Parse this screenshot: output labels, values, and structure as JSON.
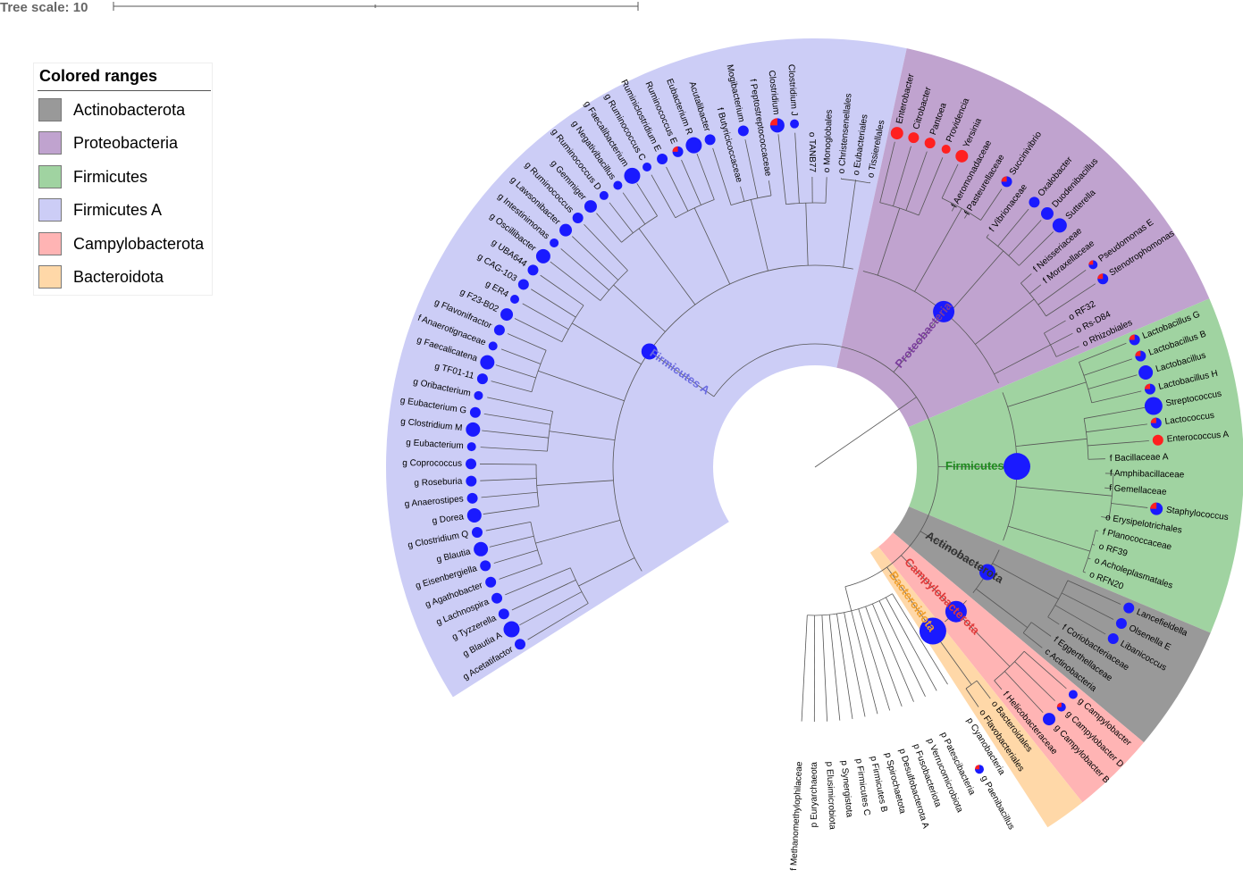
{
  "scale": {
    "title": "Tree scale: 10"
  },
  "legend": {
    "title": "Colored ranges",
    "items": [
      {
        "label": "Actinobacterota",
        "color": "#999999"
      },
      {
        "label": "Proteobacteria",
        "color": "#c0a3cf"
      },
      {
        "label": "Firmicutes",
        "color": "#a0d3a1"
      },
      {
        "label": "Firmicutes A",
        "color": "#cccdf6"
      },
      {
        "label": "Campylobacterota",
        "color": "#ffb4b4"
      },
      {
        "label": "Bacteroidota",
        "color": "#ffd8a8"
      }
    ]
  },
  "phylum_labels": [
    {
      "text": "Actinobacterota",
      "color": "#333333"
    },
    {
      "text": "Campylobacterota",
      "color": "#e03b3b"
    },
    {
      "text": "Bacteroidota",
      "color": "#f0a030"
    },
    {
      "text": "Firmicutes",
      "color": "#1f8a1f"
    },
    {
      "text": "Proteobacteria",
      "color": "#7a3d9c"
    },
    {
      "text": "Firmicutes A",
      "color": "#6a6ae0"
    }
  ],
  "leaves": [
    {
      "label": "g Acetatifactor",
      "clade": "Firmicutes A",
      "marker": "blue",
      "size": 6
    },
    {
      "label": "g Blautia A",
      "clade": "Firmicutes A",
      "marker": "blue",
      "size": 9
    },
    {
      "label": "g Tyzzerella",
      "clade": "Firmicutes A",
      "marker": "blue",
      "size": 6
    },
    {
      "label": "g Lachnospira",
      "clade": "Firmicutes A",
      "marker": "blue",
      "size": 6
    },
    {
      "label": "g Agathobacter",
      "clade": "Firmicutes A",
      "marker": "blue",
      "size": 6
    },
    {
      "label": "g Eisenbergiella",
      "clade": "Firmicutes A",
      "marker": "blue",
      "size": 6
    },
    {
      "label": "g Blautia",
      "clade": "Firmicutes A",
      "marker": "blue",
      "size": 8
    },
    {
      "label": "g Clostridium Q",
      "clade": "Firmicutes A",
      "marker": "blue",
      "size": 6
    },
    {
      "label": "g Dorea",
      "clade": "Firmicutes A",
      "marker": "blue",
      "size": 8
    },
    {
      "label": "g Anaerostipes",
      "clade": "Firmicutes A",
      "marker": "blue",
      "size": 6
    },
    {
      "label": "g Roseburia",
      "clade": "Firmicutes A",
      "marker": "blue",
      "size": 6
    },
    {
      "label": "g Coprococcus",
      "clade": "Firmicutes A",
      "marker": "blue",
      "size": 6
    },
    {
      "label": "g Eubacterium",
      "clade": "Firmicutes A",
      "marker": "blue",
      "size": 5
    },
    {
      "label": "g Clostridium M",
      "clade": "Firmicutes A",
      "marker": "blue",
      "size": 8
    },
    {
      "label": "g Eubacterium G",
      "clade": "Firmicutes A",
      "marker": "blue",
      "size": 6
    },
    {
      "label": "g Oribacterium",
      "clade": "Firmicutes A",
      "marker": "blue",
      "size": 5
    },
    {
      "label": "g TF01-11",
      "clade": "Firmicutes A",
      "marker": "blue",
      "size": 6
    },
    {
      "label": "g Faecalicatena",
      "clade": "Firmicutes A",
      "marker": "blue",
      "size": 8
    },
    {
      "label": "f Anaerotignaceae",
      "clade": "Firmicutes A",
      "marker": "blue",
      "size": 5
    },
    {
      "label": "g Flavonifractor",
      "clade": "Firmicutes A",
      "marker": "blue",
      "size": 6
    },
    {
      "label": "g F23-B02",
      "clade": "Firmicutes A",
      "marker": "blue",
      "size": 7
    },
    {
      "label": "g ER4",
      "clade": "Firmicutes A",
      "marker": "blue",
      "size": 5
    },
    {
      "label": "g CAG-103",
      "clade": "Firmicutes A",
      "marker": "blue",
      "size": 6
    },
    {
      "label": "g UBA644",
      "clade": "Firmicutes A",
      "marker": "blue",
      "size": 6
    },
    {
      "label": "g Oscillibacter",
      "clade": "Firmicutes A",
      "marker": "blue",
      "size": 8
    },
    {
      "label": "g Intestinimonas",
      "clade": "Firmicutes A",
      "marker": "blue",
      "size": 5
    },
    {
      "label": "g Lawsonibacter",
      "clade": "Firmicutes A",
      "marker": "blue",
      "size": 7
    },
    {
      "label": "g Ruminococcus",
      "clade": "Firmicutes A",
      "marker": "blue",
      "size": 6
    },
    {
      "label": "g Gemmiger",
      "clade": "Firmicutes A",
      "marker": "blue",
      "size": 7
    },
    {
      "label": "g Ruminococcus D",
      "clade": "Firmicutes A",
      "marker": "blue",
      "size": 5
    },
    {
      "label": "g Negativibacillus",
      "clade": "Firmicutes A",
      "marker": "blue",
      "size": 5
    },
    {
      "label": "g Faecalibacterium",
      "clade": "Firmicutes A",
      "marker": "blue",
      "size": 9
    },
    {
      "label": "g Ruminococcus C",
      "clade": "Firmicutes A",
      "marker": "blue",
      "size": 5
    },
    {
      "label": "Ruminiclostridium E",
      "clade": "Firmicutes A",
      "marker": "blue",
      "size": 6
    },
    {
      "label": "Ruminococcus E",
      "clade": "Firmicutes A",
      "marker": "mixed",
      "size": 6
    },
    {
      "label": "Eubacterium R",
      "clade": "Firmicutes A",
      "marker": "blue",
      "size": 9
    },
    {
      "label": "Acutalibacter",
      "clade": "Firmicutes A",
      "marker": "blue",
      "size": 6
    },
    {
      "label": "f Butyricicoccaceae",
      "clade": "Firmicutes A",
      "marker": "none",
      "size": 0
    },
    {
      "label": "Mogibacterium",
      "clade": "Firmicutes A",
      "marker": "blue",
      "size": 6
    },
    {
      "label": "f Peptostreptococcaceae",
      "clade": "Firmicutes A",
      "marker": "none",
      "size": 0
    },
    {
      "label": "Clostridium",
      "clade": "Firmicutes A",
      "marker": "mixed",
      "size": 8
    },
    {
      "label": "Clostridium J",
      "clade": "Firmicutes A",
      "marker": "blue",
      "size": 5
    },
    {
      "label": "o TANB77",
      "clade": "Firmicutes A",
      "marker": "none",
      "size": 0
    },
    {
      "label": "o Monoglobales",
      "clade": "Firmicutes A",
      "marker": "none",
      "size": 0
    },
    {
      "label": "o Christensenellales",
      "clade": "Firmicutes A",
      "marker": "none",
      "size": 0
    },
    {
      "label": "o Eubacteriales",
      "clade": "Firmicutes A",
      "marker": "none",
      "size": 0
    },
    {
      "label": "o Tissierellales",
      "clade": "Firmicutes A",
      "marker": "none",
      "size": 0
    },
    {
      "label": "Enterobacter",
      "clade": "Proteobacteria",
      "marker": "red",
      "size": 7
    },
    {
      "label": "Citrobacter",
      "clade": "Proteobacteria",
      "marker": "red",
      "size": 6
    },
    {
      "label": "Pantoea",
      "clade": "Proteobacteria",
      "marker": "red",
      "size": 6
    },
    {
      "label": "Providencia",
      "clade": "Proteobacteria",
      "marker": "red",
      "size": 5
    },
    {
      "label": "Yersinia",
      "clade": "Proteobacteria",
      "marker": "red",
      "size": 7
    },
    {
      "label": "f Aeromonadaceae",
      "clade": "Proteobacteria",
      "marker": "none",
      "size": 0
    },
    {
      "label": "f Pasteurellaceae",
      "clade": "Proteobacteria",
      "marker": "none",
      "size": 0
    },
    {
      "label": "Succinivibrio",
      "clade": "Proteobacteria",
      "marker": "mixed",
      "size": 6
    },
    {
      "label": "f Vibrionaceae",
      "clade": "Proteobacteria",
      "marker": "none",
      "size": 0
    },
    {
      "label": "Oxalobacter",
      "clade": "Proteobacteria",
      "marker": "blue",
      "size": 6
    },
    {
      "label": "Duodenibacillus",
      "clade": "Proteobacteria",
      "marker": "blue",
      "size": 7
    },
    {
      "label": "Sutterella",
      "clade": "Proteobacteria",
      "marker": "blue",
      "size": 8
    },
    {
      "label": "f Neisseriaceae",
      "clade": "Proteobacteria",
      "marker": "none",
      "size": 0
    },
    {
      "label": "f Moraxellaceae",
      "clade": "Proteobacteria",
      "marker": "none",
      "size": 0
    },
    {
      "label": "Pseudomonas E",
      "clade": "Proteobacteria",
      "marker": "mixed",
      "size": 5
    },
    {
      "label": "Stenotrophomonas",
      "clade": "Proteobacteria",
      "marker": "mixed",
      "size": 6
    },
    {
      "label": "o RF32",
      "clade": "Proteobacteria",
      "marker": "none",
      "size": 0
    },
    {
      "label": "o Rs-D84",
      "clade": "Proteobacteria",
      "marker": "none",
      "size": 0
    },
    {
      "label": "o Rhizobiales",
      "clade": "Proteobacteria",
      "marker": "none",
      "size": 0
    },
    {
      "label": "Lactobacillus G",
      "clade": "Firmicutes",
      "marker": "mixed",
      "size": 6
    },
    {
      "label": "Lactobacillus B",
      "clade": "Firmicutes",
      "marker": "mixed",
      "size": 6
    },
    {
      "label": "Lactobacillus",
      "clade": "Firmicutes",
      "marker": "blue",
      "size": 8
    },
    {
      "label": "Lactobacillus H",
      "clade": "Firmicutes",
      "marker": "mixed",
      "size": 6
    },
    {
      "label": "Streptococcus",
      "clade": "Firmicutes",
      "marker": "blue",
      "size": 10
    },
    {
      "label": "Lactococcus",
      "clade": "Firmicutes",
      "marker": "mixed",
      "size": 6
    },
    {
      "label": "Enterococcus A",
      "clade": "Firmicutes",
      "marker": "red",
      "size": 6
    },
    {
      "label": "f Bacillaceae A",
      "clade": "Firmicutes",
      "marker": "none",
      "size": 0
    },
    {
      "label": "f Amphibacillaceae",
      "clade": "Firmicutes",
      "marker": "none",
      "size": 0
    },
    {
      "label": "f Gemellaceae",
      "clade": "Firmicutes",
      "marker": "none",
      "size": 0
    },
    {
      "label": "Staphylococcus",
      "clade": "Firmicutes",
      "marker": "mixed",
      "size": 7
    },
    {
      "label": "o Erysipelotrichales",
      "clade": "Firmicutes",
      "marker": "none",
      "size": 0
    },
    {
      "label": "f Planococcaceae",
      "clade": "Firmicutes",
      "marker": "none",
      "size": 0
    },
    {
      "label": "o RF39",
      "clade": "Firmicutes",
      "marker": "none",
      "size": 0
    },
    {
      "label": "o Acholeplasmatales",
      "clade": "Firmicutes",
      "marker": "none",
      "size": 0
    },
    {
      "label": "o RFN20",
      "clade": "Firmicutes",
      "marker": "none",
      "size": 0
    },
    {
      "label": "Lancefieldella",
      "clade": "Actinobacterota",
      "marker": "blue",
      "size": 6
    },
    {
      "label": "Olsenella E",
      "clade": "Actinobacterota",
      "marker": "blue",
      "size": 6
    },
    {
      "label": "Libanicoccus",
      "clade": "Actinobacterota",
      "marker": "blue",
      "size": 6
    },
    {
      "label": "f Coriobacteriaceae",
      "clade": "Actinobacterota",
      "marker": "none",
      "size": 0
    },
    {
      "label": "f Eggerthellaceae",
      "clade": "Actinobacterota",
      "marker": "none",
      "size": 0
    },
    {
      "label": "c Actinobacteria",
      "clade": "Actinobacterota",
      "marker": "none",
      "size": 0
    },
    {
      "label": "g Campylobacter",
      "clade": "Campylobacterota",
      "marker": "blue",
      "size": 5
    },
    {
      "label": "g Campylobacter D",
      "clade": "Campylobacterota",
      "marker": "mixed",
      "size": 5
    },
    {
      "label": "g Campylobacter B",
      "clade": "Campylobacterota",
      "marker": "blue",
      "size": 7
    },
    {
      "label": "f Helicobacteraceae",
      "clade": "Campylobacterota",
      "marker": "none",
      "size": 0
    },
    {
      "label": "o Bacteroidales",
      "clade": "Bacteroidota",
      "marker": "none",
      "size": 0
    },
    {
      "label": "o Flavobacteriales",
      "clade": "Bacteroidota",
      "marker": "none",
      "size": 0
    },
    {
      "label": "p Cyanobacteria",
      "clade": "",
      "marker": "none",
      "size": 0
    },
    {
      "label": "g Paenibacillus",
      "clade": "",
      "marker": "mixed",
      "size": 5
    },
    {
      "label": "p Patescibacteria",
      "clade": "",
      "marker": "none",
      "size": 0
    },
    {
      "label": "p Verrucomicrobiota",
      "clade": "",
      "marker": "none",
      "size": 0
    },
    {
      "label": "p Fusobacteriota",
      "clade": "",
      "marker": "none",
      "size": 0
    },
    {
      "label": "p Desulfobacterota A",
      "clade": "",
      "marker": "none",
      "size": 0
    },
    {
      "label": "p Spirochaetota",
      "clade": "",
      "marker": "none",
      "size": 0
    },
    {
      "label": "p Firmicutes B",
      "clade": "",
      "marker": "none",
      "size": 0
    },
    {
      "label": "p Firmicutes C",
      "clade": "",
      "marker": "none",
      "size": 0
    },
    {
      "label": "p Synergistota",
      "clade": "",
      "marker": "none",
      "size": 0
    },
    {
      "label": "p Elusimicrobiota",
      "clade": "",
      "marker": "none",
      "size": 0
    },
    {
      "label": "p Euryarchaeota",
      "clade": "",
      "marker": "none",
      "size": 0
    },
    {
      "label": "f Methanomethylophilaceae",
      "clade": "",
      "marker": "none",
      "size": 0
    }
  ],
  "colors": {
    "blue": "#1a1aff",
    "red": "#ff2020",
    "branch": "#555555"
  }
}
